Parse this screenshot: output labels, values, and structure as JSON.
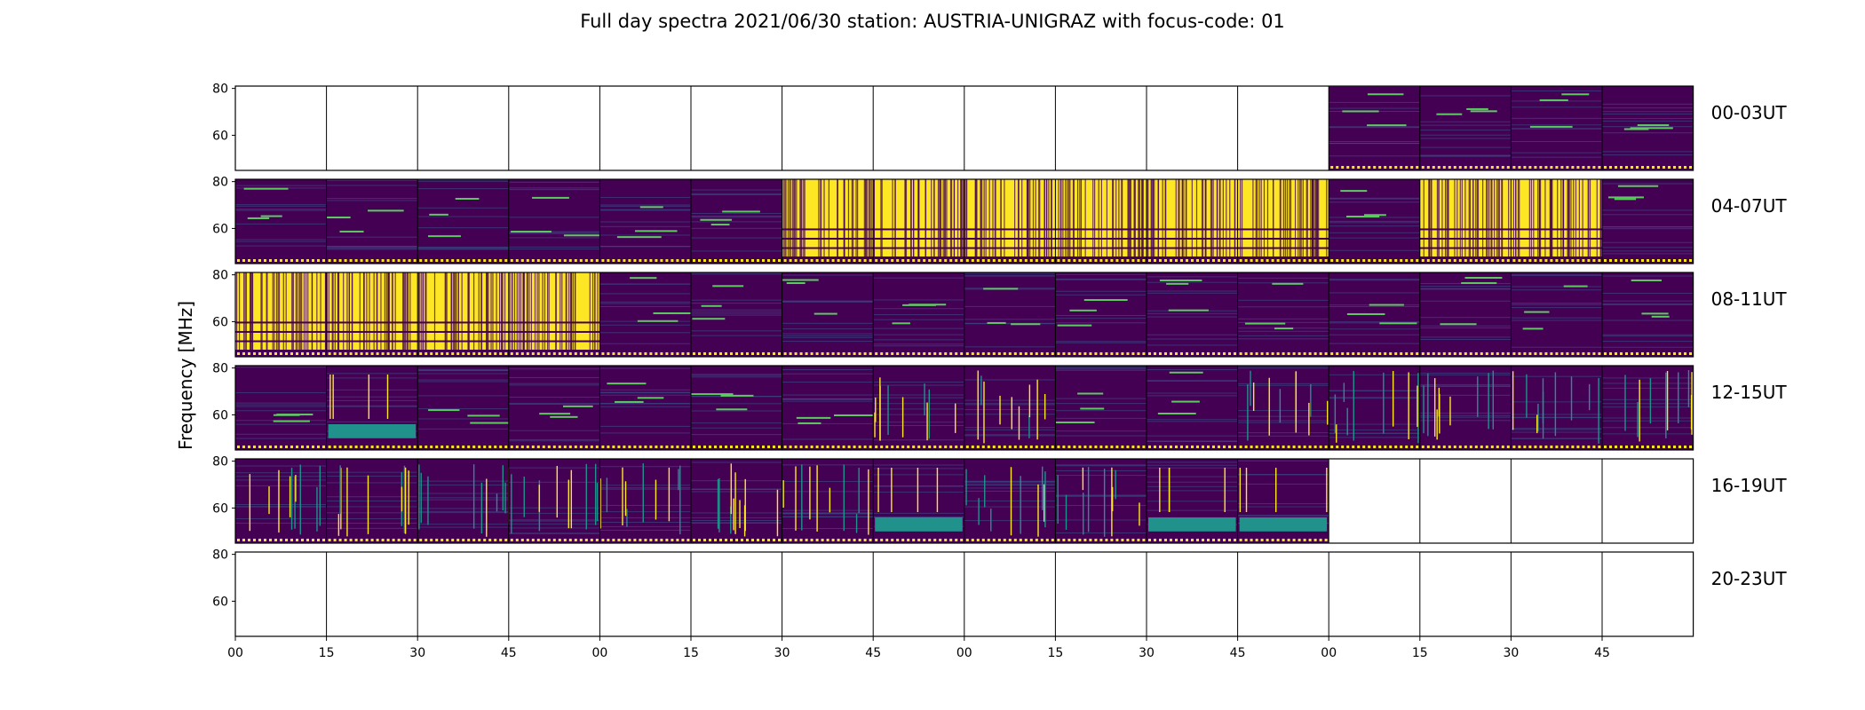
{
  "chart_data": {
    "type": "heatmap",
    "title": "Full day spectra 2021/06/30 station: AUSTRIA-UNIGRAZ with focus-code: 01",
    "ylabel": "Frequency [MHz]",
    "xlabel": "",
    "ylim": [
      45,
      81
    ],
    "ytick_labels": [
      "80",
      "60"
    ],
    "ytick_values": [
      80,
      60
    ],
    "xtick_labels": [
      "00",
      "15",
      "30",
      "45",
      "00",
      "15",
      "30",
      "45",
      "00",
      "15",
      "30",
      "45",
      "00",
      "15",
      "30",
      "45"
    ],
    "colormap": "viridis",
    "colors": {
      "dark": "#440154",
      "mid_blue": "#3b528b",
      "teal": "#21918c",
      "green": "#5ec962",
      "yellow": "#fde725"
    },
    "segment_minutes": 15,
    "rows": [
      {
        "label": "00-03UT",
        "segments": [
          "empty",
          "empty",
          "empty",
          "empty",
          "empty",
          "empty",
          "empty",
          "empty",
          "empty",
          "empty",
          "empty",
          "empty",
          "quiet",
          "quiet",
          "quiet",
          "quiet"
        ]
      },
      {
        "label": "04-07UT",
        "segments": [
          "quiet",
          "quiet",
          "quiet",
          "quiet",
          "quiet",
          "quiet",
          "saturated",
          "saturated",
          "saturated",
          "saturated",
          "saturated",
          "saturated",
          "quiet",
          "saturated",
          "saturated",
          "quiet"
        ]
      },
      {
        "label": "08-11UT",
        "segments": [
          "saturated",
          "saturated",
          "saturated",
          "saturated",
          "quiet",
          "quiet",
          "quiet",
          "quiet",
          "quiet",
          "quiet",
          "quiet",
          "quiet",
          "quiet",
          "quiet",
          "quiet",
          "quiet"
        ]
      },
      {
        "label": "12-15UT",
        "segments": [
          "quiet",
          "band",
          "quiet",
          "quiet",
          "quiet",
          "quiet",
          "quiet",
          "bursts",
          "bursts",
          "quiet",
          "quiet",
          "bursts",
          "bursts",
          "bursts",
          "bursts",
          "bursts"
        ]
      },
      {
        "label": "16-19UT",
        "segments": [
          "bursts",
          "bursts",
          "bursts",
          "bursts",
          "bursts",
          "bursts",
          "bursts",
          "band",
          "bursts",
          "bursts",
          "band",
          "band",
          "empty",
          "empty",
          "empty",
          "empty"
        ]
      },
      {
        "label": "20-23UT",
        "segments": [
          "empty",
          "empty",
          "empty",
          "empty",
          "empty",
          "empty",
          "empty",
          "empty",
          "empty",
          "empty",
          "empty",
          "empty",
          "empty",
          "empty",
          "empty",
          "empty"
        ]
      }
    ]
  }
}
